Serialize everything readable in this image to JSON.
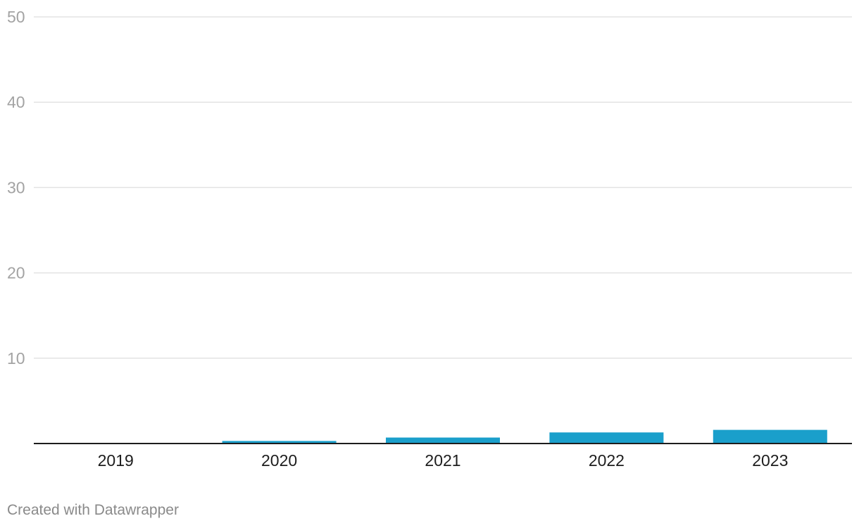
{
  "chart_data": {
    "type": "bar",
    "categories": [
      "2019",
      "2020",
      "2021",
      "2022",
      "2023"
    ],
    "values": [
      0,
      0.3,
      0.7,
      1.3,
      1.6
    ],
    "ylim": [
      0,
      50
    ],
    "yticks": [
      10,
      20,
      30,
      40,
      50
    ],
    "grid": true,
    "bar_color": "#1a9fcb",
    "gridline_color": "#e3e3e3",
    "baseline_color": "#1d1d1d"
  },
  "footer": {
    "credit": "Created with Datawrapper"
  }
}
